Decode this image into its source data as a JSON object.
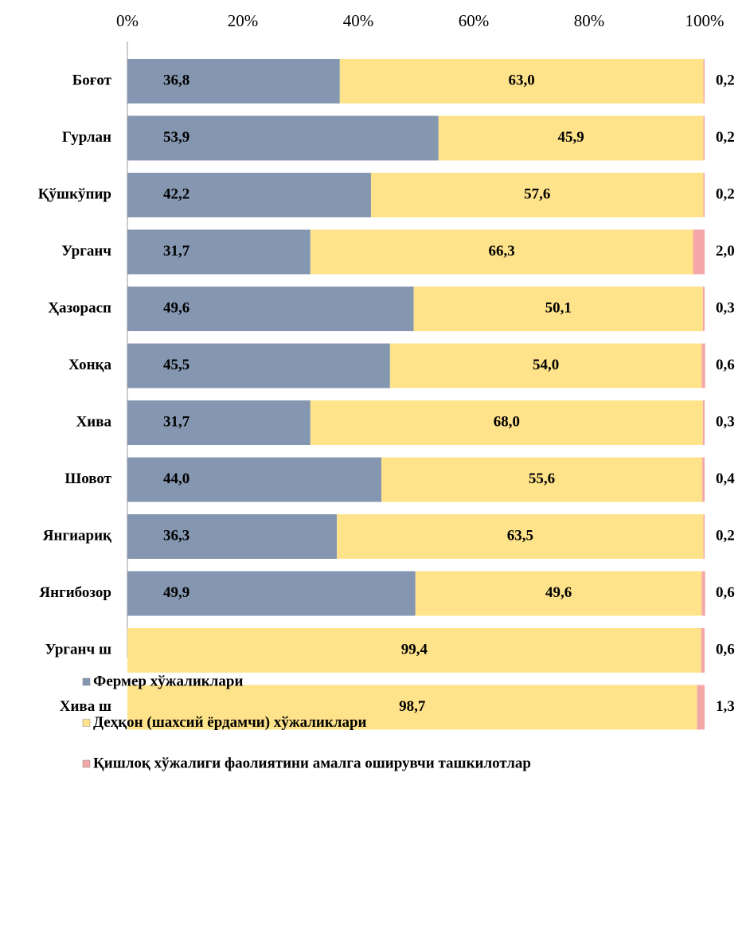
{
  "chart_data": {
    "type": "bar",
    "orientation": "horizontal",
    "stacked": true,
    "categories": [
      "Боғот",
      "Гурлан",
      "Қўшкўпир",
      "Урганч",
      "Ҳазорасп",
      "Хонқа",
      "Хива",
      "Шовот",
      "Янгиариқ",
      "Янгибозор",
      "Урганч ш",
      "Хива ш"
    ],
    "series": [
      {
        "name": "Фермер хўжаликлари",
        "color": "#8496b0",
        "values": [
          36.8,
          53.9,
          42.2,
          31.7,
          49.6,
          45.5,
          31.7,
          44.0,
          36.3,
          49.9,
          0,
          0
        ],
        "value_labels": [
          "36,8",
          "53,9",
          "42,2",
          "31,7",
          "49,6",
          "45,5",
          "31,7",
          "44,0",
          "36,3",
          "49,9",
          "0",
          "0"
        ]
      },
      {
        "name": "Деҳқон (шахсий ёрдамчи) хўжаликлари",
        "color": "#ffe38a",
        "values": [
          63.0,
          45.9,
          57.6,
          66.3,
          50.1,
          54.0,
          68.0,
          55.6,
          63.5,
          49.6,
          99.4,
          98.7
        ],
        "value_labels": [
          "63,0",
          "45,9",
          "57,6",
          "66,3",
          "50,1",
          "54,0",
          "68,0",
          "55,6",
          "63,5",
          "49,6",
          "99,4",
          "98,7"
        ]
      },
      {
        "name": "Қишлоқ хўжалиги фаолиятини амалга оширувчи ташкилотлар",
        "color": "#f4a7a7",
        "values": [
          0.2,
          0.2,
          0.2,
          2.0,
          0.3,
          0.6,
          0.3,
          0.4,
          0.2,
          0.6,
          0.6,
          1.3
        ],
        "value_labels": [
          "0,2",
          "0,2",
          "0,2",
          "2,0",
          "0,3",
          "0,6",
          "0,3",
          "0,4",
          "0,2",
          "0,6",
          "0,6",
          "1,3"
        ]
      }
    ],
    "xlim": [
      0,
      100
    ],
    "xticks": [
      {
        "value": 0,
        "label": "0%"
      },
      {
        "value": 20,
        "label": "20%"
      },
      {
        "value": 40,
        "label": "40%"
      },
      {
        "value": 60,
        "label": "60%"
      },
      {
        "value": 80,
        "label": "80%"
      },
      {
        "value": 100,
        "label": "100%"
      }
    ],
    "grid": false,
    "legend": "bottom"
  }
}
